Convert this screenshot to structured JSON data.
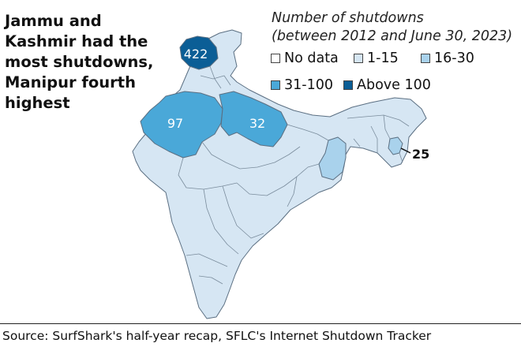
{
  "headline": [
    "Jammu and",
    "Kashmir had the",
    "most shutdowns,",
    "Manipur fourth",
    "highest"
  ],
  "legend": {
    "title_lines": [
      "Number of shutdowns",
      "(between 2012 and June 30, 2023)"
    ],
    "items": [
      {
        "label": "No data",
        "color": "#ffffff"
      },
      {
        "label": "1-15",
        "color": "#d6e6f3"
      },
      {
        "label": "16-30",
        "color": "#a9d2ec"
      },
      {
        "label": "31-100",
        "color": "#4aa8d8"
      },
      {
        "label": "Above 100",
        "color": "#0b5e96"
      }
    ]
  },
  "map_labels": {
    "jammu_kashmir": "422",
    "rajasthan": "97",
    "uttar_pradesh": "32",
    "manipur": "25"
  },
  "source": "Source: SurfShark's half-year recap, SFLC's Internet Shutdown Tracker"
}
